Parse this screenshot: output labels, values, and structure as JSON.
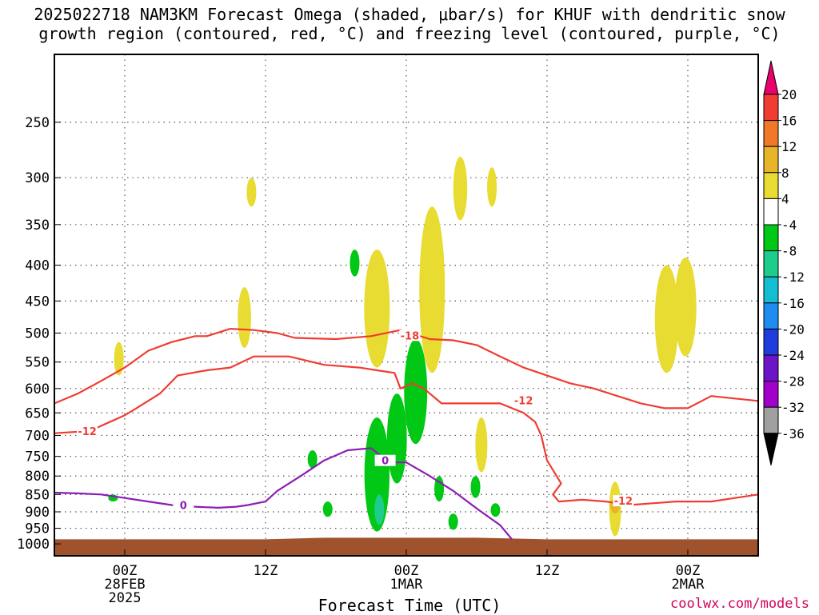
{
  "title_line1": "2025022718 NAM3KM Forecast Omega (shaded, μbar/s) for KHUF with dendritic snow",
  "title_line2": "growth region (contoured, red, °C) and freezing level (contoured, purple, °C)",
  "xlabel": "Forecast Time (UTC)",
  "credit": "coolwx.com/models",
  "chart_data": {
    "type": "heatmap",
    "title": "2025022718 NAM3KM Forecast Omega (shaded, μbar/s) for KHUF with dendritic snow growth region (contoured, red, °C) and freezing level (contoured, purple, °C)",
    "xlabel": "Forecast Time (UTC)",
    "ylabel": "",
    "x_range_hours": [
      -6,
      54
    ],
    "y_range_hpa": [
      200,
      1040
    ],
    "y_scale": "log",
    "y_ticks": [
      250,
      300,
      350,
      400,
      450,
      500,
      550,
      600,
      650,
      700,
      750,
      800,
      850,
      900,
      950,
      1000
    ],
    "x_ticks": [
      {
        "hour": 0,
        "lines": [
          "00Z",
          "28FEB",
          "2025"
        ]
      },
      {
        "hour": 12,
        "lines": [
          "12Z"
        ]
      },
      {
        "hour": 24,
        "lines": [
          "00Z",
          "1MAR"
        ]
      },
      {
        "hour": 36,
        "lines": [
          "12Z"
        ]
      },
      {
        "hour": 48,
        "lines": [
          "00Z",
          "2MAR"
        ]
      }
    ],
    "colorbar": {
      "labels": [
        "20",
        "16",
        "12",
        "8",
        "4",
        "-4",
        "-8",
        "-12",
        "-16",
        "-20",
        "-24",
        "-28",
        "-32",
        "-36"
      ],
      "colors": [
        "#e8006e",
        "#f03c32",
        "#f07828",
        "#e8b428",
        "#e8dc32",
        "#ffffff",
        "#00c814",
        "#1ecc8c",
        "#14bed2",
        "#1e8cf0",
        "#1e3cdc",
        "#6e14c8",
        "#a000c8",
        "#a0a0a0",
        "#000000"
      ]
    },
    "omega_positive": [
      {
        "hour": -0.5,
        "p_top": 515,
        "p_bot": 575,
        "value": 5
      },
      {
        "hour": 10.8,
        "p_top": 300,
        "p_bot": 330,
        "value": 5
      },
      {
        "hour": 10.2,
        "p_top": 430,
        "p_bot": 525,
        "value": 5
      },
      {
        "hour": 21.5,
        "p_top": 380,
        "p_bot": 560,
        "value": 5
      },
      {
        "hour": 26.2,
        "p_top": 330,
        "p_bot": 570,
        "value": 6
      },
      {
        "hour": 28.6,
        "p_top": 280,
        "p_bot": 345,
        "value": 5
      },
      {
        "hour": 31.3,
        "p_top": 290,
        "p_bot": 330,
        "value": 5
      },
      {
        "hour": 30.4,
        "p_top": 660,
        "p_bot": 790,
        "value": 5
      },
      {
        "hour": 46.2,
        "p_top": 400,
        "p_bot": 570,
        "value": 5
      },
      {
        "hour": 47.8,
        "p_top": 390,
        "p_bot": 540,
        "value": 5
      },
      {
        "hour": 41.8,
        "p_top": 815,
        "p_bot": 975,
        "value": 6
      },
      {
        "hour": 41.8,
        "p_top": 860,
        "p_bot": 905,
        "value": 10
      }
    ],
    "omega_negative": [
      {
        "hour": 19.6,
        "p_top": 380,
        "p_bot": 415,
        "value": -5
      },
      {
        "hour": 21.5,
        "p_top": 660,
        "p_bot": 960,
        "value": -6
      },
      {
        "hour": 21.7,
        "p_top": 850,
        "p_bot": 940,
        "value": -9
      },
      {
        "hour": 23.2,
        "p_top": 610,
        "p_bot": 820,
        "value": -5
      },
      {
        "hour": 24.8,
        "p_top": 510,
        "p_bot": 720,
        "value": -5
      },
      {
        "hour": 16.0,
        "p_top": 735,
        "p_bot": 780,
        "value": -5
      },
      {
        "hour": 17.3,
        "p_top": 870,
        "p_bot": 915,
        "value": -5
      },
      {
        "hour": 26.8,
        "p_top": 800,
        "p_bot": 870,
        "value": -5
      },
      {
        "hour": 28.0,
        "p_top": 905,
        "p_bot": 955,
        "value": -5
      },
      {
        "hour": 29.9,
        "p_top": 800,
        "p_bot": 860,
        "value": -5
      },
      {
        "hour": 31.6,
        "p_top": 875,
        "p_bot": 915,
        "value": -5
      },
      {
        "hour": -1.0,
        "p_top": 850,
        "p_bot": 870,
        "value": -5
      }
    ],
    "series": [
      {
        "name": "-18",
        "color": "#f03c32",
        "hours": [
          -6,
          -4,
          -2,
          0,
          2,
          4,
          6,
          7,
          9,
          11,
          13,
          14.5,
          18,
          21,
          23.5,
          26,
          28,
          30,
          32,
          34,
          36,
          38,
          40,
          42,
          44,
          46,
          48,
          50,
          52,
          54
        ],
        "p": [
          630,
          610,
          585,
          560,
          530,
          515,
          505,
          505,
          493,
          495,
          500,
          508,
          510,
          505,
          495,
          510,
          512,
          520,
          540,
          560,
          575,
          590,
          600,
          615,
          630,
          640,
          640,
          615,
          620,
          625
        ]
      },
      {
        "name": "-12",
        "color": "#f03c32",
        "hours": [
          -6,
          -3,
          0,
          1,
          3,
          4.5,
          7,
          9,
          11,
          14,
          17,
          20,
          21.5,
          23,
          23.5,
          24.5,
          25.5,
          27,
          30,
          32,
          34,
          35,
          35.5,
          36,
          37.2,
          36.5,
          37,
          39,
          41,
          43,
          45,
          47,
          50,
          52,
          54
        ],
        "p": [
          695,
          690,
          655,
          640,
          610,
          575,
          565,
          560,
          540,
          540,
          555,
          560,
          565,
          570,
          600,
          590,
          600,
          630,
          630,
          630,
          650,
          670,
          700,
          760,
          820,
          850,
          870,
          865,
          870,
          880,
          875,
          870,
          870,
          860,
          850
        ]
      },
      {
        "name": "0",
        "color": "#8c1eb4",
        "hours": [
          -6,
          -4,
          -2,
          0,
          2,
          4,
          6,
          8,
          9.5,
          10.5,
          12,
          13,
          15,
          17,
          19,
          21,
          22.5,
          24,
          26,
          28,
          30,
          32,
          33
        ],
        "p": [
          845,
          847,
          850,
          860,
          870,
          880,
          885,
          888,
          885,
          880,
          870,
          840,
          800,
          760,
          735,
          730,
          765,
          765,
          800,
          840,
          890,
          940,
          985
        ]
      }
    ],
    "contour_labels": [
      {
        "text": "-18",
        "hour": 24.3,
        "p": 505,
        "color": "#f03c32"
      },
      {
        "text": "-12",
        "hour": -3.2,
        "p": 692,
        "color": "#f03c32"
      },
      {
        "text": "-12",
        "hour": 34.0,
        "p": 625,
        "color": "#f03c32"
      },
      {
        "text": "-12",
        "hour": 42.5,
        "p": 870,
        "color": "#f03c32"
      },
      {
        "text": "0",
        "hour": 5.0,
        "p": 882,
        "color": "#8c1eb4"
      },
      {
        "text": "0",
        "hour": 22.2,
        "p": 762,
        "color": "#8c1eb4"
      }
    ],
    "terrain": {
      "color": "#a0522d",
      "p_surface_start": 985,
      "p_surface_peak": 980
    }
  }
}
